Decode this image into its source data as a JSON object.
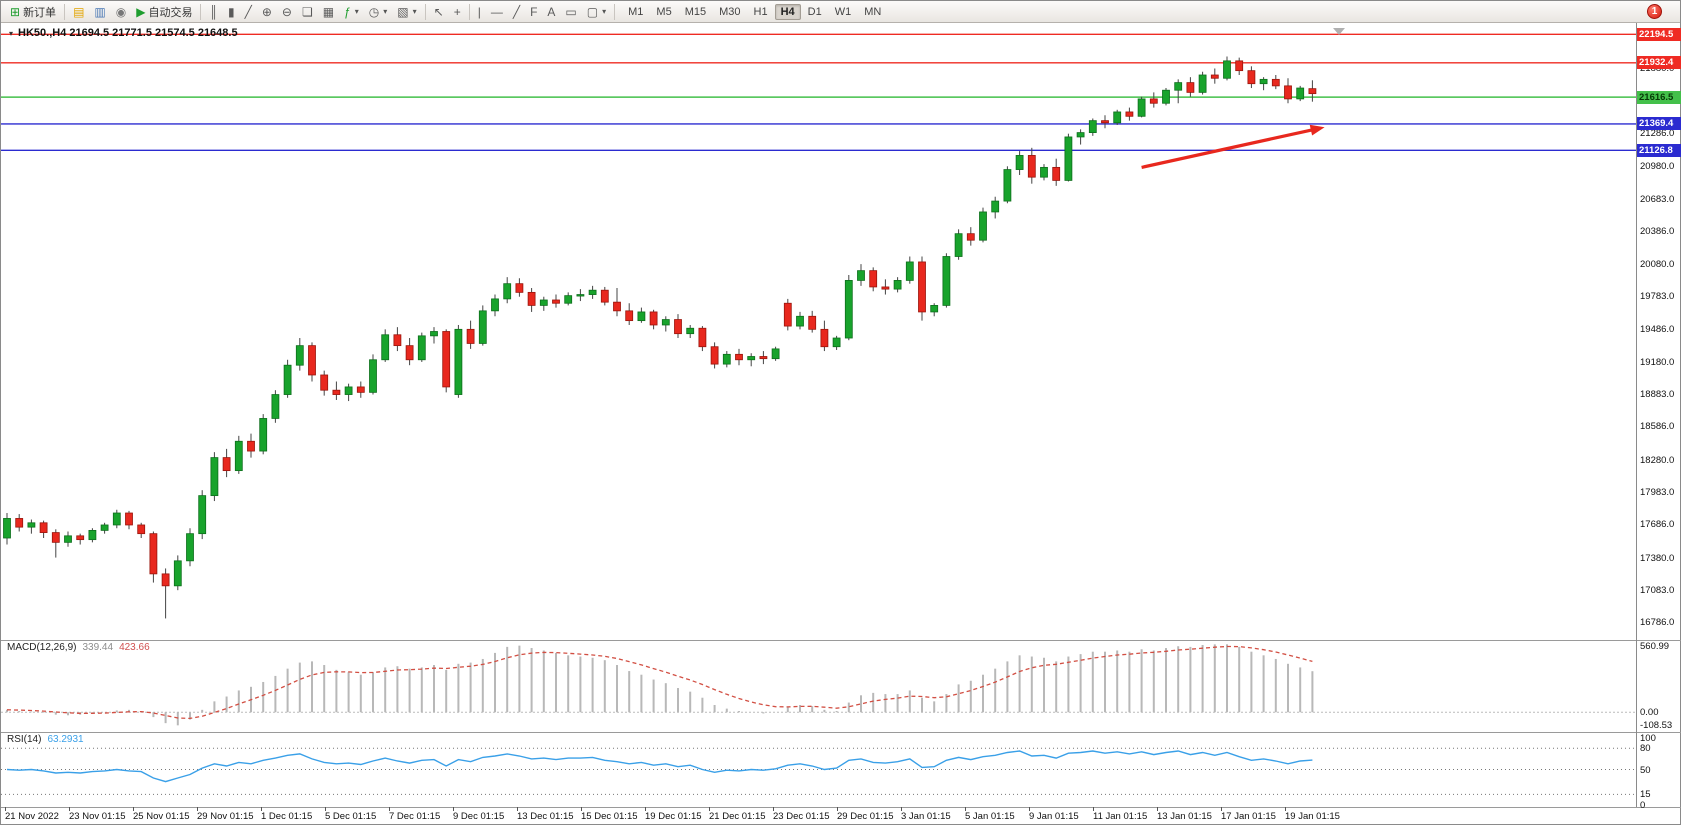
{
  "toolbar": {
    "new_order_label": "新订单",
    "auto_trading_label": "自动交易",
    "timeframes": [
      "M1",
      "M5",
      "M15",
      "M30",
      "H1",
      "H4",
      "D1",
      "W1",
      "MN"
    ],
    "active_timeframe": "H4",
    "notification_count": "1",
    "icons": {
      "menu_triangle": "▾",
      "new_order": "⊞",
      "profiles": "▤",
      "market_watch": "▥",
      "community": "◉",
      "auto_trading": "▶",
      "chart_bars": "║",
      "chart_candles": "▮",
      "chart_line": "╱",
      "zoom_in": "⊕",
      "zoom_out": "⊖",
      "tile_windows": "❏",
      "arrange_windows": "▦",
      "indicators": "ƒ",
      "periods": "◷",
      "templates": "▧",
      "cursor": "↖",
      "crosshair": "+",
      "vline": "|",
      "hline": "—",
      "trendline": "╱",
      "fibonacci": "F",
      "text": "A",
      "label": "▭",
      "shapes": "▢",
      "dropdown": "▾"
    }
  },
  "chart_data": {
    "type": "candlestick",
    "title": "HK50.,H4 21694.5 21771.5 21574.5 21648.5",
    "symbol": "HK50.",
    "timeframe": "H4",
    "last_ohlc": {
      "open": 21694.5,
      "high": 21771.5,
      "low": 21574.5,
      "close": 21648.5
    },
    "price_axis": {
      "min": 16640,
      "max": 22280,
      "ticks": [
        "21880.0",
        "21286.0",
        "20980.0",
        "20683.0",
        "20386.0",
        "20080.0",
        "19783.0",
        "19486.0",
        "19180.0",
        "18883.0",
        "18586.0",
        "18280.0",
        "17983.0",
        "17686.0",
        "17380.0",
        "17083.0",
        "16786.0"
      ]
    },
    "levels": [
      {
        "price": 22194.5,
        "label": "22194.5",
        "color": "#ef2b23",
        "text_color": "#ffffff"
      },
      {
        "price": 21932.4,
        "label": "21932.4",
        "color": "#ef2b23",
        "text_color": "#ffffff"
      },
      {
        "price": 21616.5,
        "label": "21616.5",
        "color": "#43c04a",
        "text_color": "#063906"
      },
      {
        "price": 21369.4,
        "label": "21369.4",
        "color": "#2b2bd0",
        "text_color": "#ffffff"
      },
      {
        "price": 21126.8,
        "label": "21126.8",
        "color": "#2b2bd0",
        "text_color": "#ffffff"
      }
    ],
    "candles": [
      [
        17560,
        17790,
        17500,
        17740
      ],
      [
        17740,
        17780,
        17620,
        17660
      ],
      [
        17660,
        17730,
        17600,
        17700
      ],
      [
        17700,
        17720,
        17560,
        17610
      ],
      [
        17610,
        17640,
        17380,
        17520
      ],
      [
        17520,
        17620,
        17480,
        17580
      ],
      [
        17580,
        17600,
        17500,
        17545
      ],
      [
        17545,
        17650,
        17520,
        17630
      ],
      [
        17630,
        17700,
        17600,
        17680
      ],
      [
        17680,
        17820,
        17650,
        17790
      ],
      [
        17790,
        17810,
        17640,
        17680
      ],
      [
        17680,
        17700,
        17560,
        17600
      ],
      [
        17600,
        17620,
        17150,
        17230
      ],
      [
        17230,
        17280,
        16820,
        17120
      ],
      [
        17120,
        17400,
        17080,
        17350
      ],
      [
        17350,
        17650,
        17300,
        17600
      ],
      [
        17600,
        18000,
        17550,
        17950
      ],
      [
        17950,
        18350,
        17900,
        18300
      ],
      [
        18300,
        18380,
        18120,
        18180
      ],
      [
        18180,
        18500,
        18150,
        18450
      ],
      [
        18450,
        18520,
        18300,
        18360
      ],
      [
        18360,
        18700,
        18330,
        18660
      ],
      [
        18660,
        18920,
        18620,
        18880
      ],
      [
        18880,
        19200,
        18850,
        19150
      ],
      [
        19150,
        19400,
        19100,
        19330
      ],
      [
        19330,
        19360,
        19000,
        19060
      ],
      [
        19060,
        19100,
        18870,
        18920
      ],
      [
        18920,
        19000,
        18830,
        18880
      ],
      [
        18880,
        18980,
        18820,
        18950
      ],
      [
        18950,
        19000,
        18850,
        18900
      ],
      [
        18900,
        19250,
        18880,
        19200
      ],
      [
        19200,
        19480,
        19180,
        19430
      ],
      [
        19430,
        19500,
        19280,
        19330
      ],
      [
        19330,
        19400,
        19150,
        19200
      ],
      [
        19200,
        19450,
        19180,
        19420
      ],
      [
        19420,
        19500,
        19350,
        19460
      ],
      [
        19460,
        19480,
        18900,
        18950
      ],
      [
        18880,
        19520,
        18850,
        19480
      ],
      [
        19480,
        19560,
        19300,
        19350
      ],
      [
        19350,
        19700,
        19330,
        19650
      ],
      [
        19650,
        19800,
        19600,
        19760
      ],
      [
        19760,
        19960,
        19720,
        19900
      ],
      [
        19900,
        19950,
        19780,
        19820
      ],
      [
        19820,
        19860,
        19640,
        19700
      ],
      [
        19700,
        19780,
        19650,
        19750
      ],
      [
        19750,
        19800,
        19680,
        19720
      ],
      [
        19720,
        19820,
        19700,
        19790
      ],
      [
        19790,
        19850,
        19740,
        19800
      ],
      [
        19800,
        19880,
        19760,
        19840
      ],
      [
        19840,
        19870,
        19700,
        19730
      ],
      [
        19730,
        19860,
        19600,
        19650
      ],
      [
        19650,
        19720,
        19520,
        19560
      ],
      [
        19560,
        19680,
        19540,
        19640
      ],
      [
        19640,
        19660,
        19480,
        19520
      ],
      [
        19520,
        19600,
        19460,
        19570
      ],
      [
        19570,
        19620,
        19400,
        19440
      ],
      [
        19440,
        19520,
        19400,
        19490
      ],
      [
        19490,
        19510,
        19280,
        19320
      ],
      [
        19320,
        19360,
        19120,
        19160
      ],
      [
        19160,
        19280,
        19130,
        19250
      ],
      [
        19250,
        19300,
        19150,
        19200
      ],
      [
        19200,
        19260,
        19140,
        19230
      ],
      [
        19230,
        19280,
        19160,
        19210
      ],
      [
        19210,
        19320,
        19190,
        19300
      ],
      [
        19720,
        19760,
        19470,
        19510
      ],
      [
        19510,
        19640,
        19480,
        19600
      ],
      [
        19600,
        19650,
        19450,
        19480
      ],
      [
        19480,
        19560,
        19280,
        19320
      ],
      [
        19320,
        19420,
        19290,
        19400
      ],
      [
        19400,
        19980,
        19380,
        19930
      ],
      [
        19930,
        20080,
        19880,
        20020
      ],
      [
        20020,
        20050,
        19830,
        19870
      ],
      [
        19870,
        19940,
        19800,
        19850
      ],
      [
        19850,
        19960,
        19820,
        19930
      ],
      [
        19930,
        20150,
        19900,
        20100
      ],
      [
        20100,
        20150,
        19560,
        19640
      ],
      [
        19640,
        19720,
        19600,
        19700
      ],
      [
        19700,
        20180,
        19680,
        20150
      ],
      [
        20150,
        20400,
        20120,
        20360
      ],
      [
        20360,
        20420,
        20250,
        20300
      ],
      [
        20300,
        20600,
        20280,
        20560
      ],
      [
        20560,
        20700,
        20500,
        20660
      ],
      [
        20660,
        20980,
        20640,
        20950
      ],
      [
        20950,
        21120,
        20900,
        21080
      ],
      [
        21080,
        21150,
        20820,
        20880
      ],
      [
        20880,
        21000,
        20850,
        20970
      ],
      [
        20970,
        21050,
        20800,
        20850
      ],
      [
        20850,
        21280,
        20840,
        21250
      ],
      [
        21250,
        21320,
        21180,
        21290
      ],
      [
        21290,
        21420,
        21260,
        21400
      ],
      [
        21400,
        21450,
        21330,
        21380
      ],
      [
        21380,
        21500,
        21360,
        21480
      ],
      [
        21480,
        21520,
        21400,
        21440
      ],
      [
        21440,
        21620,
        21430,
        21600
      ],
      [
        21600,
        21660,
        21520,
        21560
      ],
      [
        21560,
        21700,
        21540,
        21680
      ],
      [
        21680,
        21780,
        21560,
        21750
      ],
      [
        21750,
        21800,
        21620,
        21660
      ],
      [
        21660,
        21850,
        21640,
        21820
      ],
      [
        21820,
        21880,
        21740,
        21790
      ],
      [
        21790,
        21990,
        21770,
        21950
      ],
      [
        21950,
        21980,
        21820,
        21860
      ],
      [
        21860,
        21900,
        21700,
        21740
      ],
      [
        21740,
        21800,
        21680,
        21780
      ],
      [
        21780,
        21820,
        21690,
        21720
      ],
      [
        21720,
        21790,
        21560,
        21600
      ],
      [
        21600,
        21720,
        21580,
        21700
      ],
      [
        21694.5,
        21771.5,
        21574.5,
        21648.5
      ]
    ],
    "time_labels": [
      "21 Nov 2022",
      "23 Nov 01:15",
      "25 Nov 01:15",
      "29 Nov 01:15",
      "1 Dec 01:15",
      "5 Dec 01:15",
      "7 Dec 01:15",
      "9 Dec 01:15",
      "13 Dec 01:15",
      "15 Dec 01:15",
      "19 Dec 01:15",
      "21 Dec 01:15",
      "23 Dec 01:15",
      "29 Dec 01:15",
      "3 Jan 01:15",
      "5 Jan 01:15",
      "9 Jan 01:15",
      "11 Jan 01:15",
      "13 Jan 01:15",
      "17 Jan 01:15",
      "19 Jan 01:15"
    ],
    "indicators": {
      "macd": {
        "name": "MACD(12,26,9)",
        "value_main": "339.44",
        "value_signal": "423.66",
        "axis_ticks": [
          "560.99",
          "0.00",
          "-108.53"
        ],
        "range": [
          -130,
          580
        ],
        "values": [
          20,
          10,
          5,
          -5,
          -20,
          -25,
          -20,
          -10,
          0,
          15,
          20,
          10,
          -40,
          -90,
          -108,
          -60,
          20,
          90,
          130,
          180,
          210,
          250,
          300,
          360,
          410,
          420,
          390,
          350,
          330,
          310,
          330,
          370,
          380,
          360,
          370,
          390,
          350,
          400,
          410,
          440,
          490,
          540,
          550,
          530,
          510,
          490,
          470,
          460,
          450,
          430,
          390,
          340,
          310,
          270,
          240,
          200,
          170,
          120,
          60,
          30,
          10,
          0,
          -10,
          0,
          40,
          60,
          50,
          20,
          10,
          80,
          140,
          160,
          150,
          150,
          180,
          120,
          90,
          150,
          230,
          260,
          310,
          360,
          420,
          470,
          460,
          450,
          420,
          460,
          480,
          500,
          500,
          510,
          500,
          520,
          510,
          530,
          545,
          540,
          555,
          560,
          561,
          540,
          500,
          470,
          440,
          400,
          370,
          339
        ]
      },
      "rsi": {
        "name": "RSI(14)",
        "value": "63.2931",
        "axis_ticks": [
          "100",
          "80",
          "50",
          "15",
          "0"
        ],
        "levels": [
          80,
          50,
          15
        ],
        "range": [
          0,
          100
        ],
        "values": [
          50,
          49,
          50,
          48,
          45,
          46,
          45,
          47,
          48,
          50,
          48,
          47,
          38,
          33,
          38,
          43,
          52,
          58,
          55,
          60,
          58,
          63,
          66,
          70,
          72,
          65,
          60,
          58,
          59,
          57,
          62,
          66,
          62,
          59,
          63,
          64,
          55,
          64,
          61,
          67,
          69,
          72,
          69,
          65,
          66,
          64,
          66,
          66,
          67,
          63,
          61,
          58,
          60,
          56,
          58,
          54,
          56,
          50,
          46,
          49,
          48,
          50,
          49,
          51,
          56,
          58,
          55,
          50,
          52,
          63,
          65,
          60,
          59,
          61,
          65,
          53,
          54,
          63,
          67,
          64,
          68,
          70,
          74,
          76,
          69,
          70,
          66,
          73,
          74,
          76,
          73,
          75,
          72,
          75,
          71,
          74,
          76,
          71,
          74,
          70,
          74,
          68,
          63,
          65,
          62,
          58,
          62,
          63.29
        ]
      }
    },
    "annotations": [
      {
        "type": "trend-arrow",
        "from": {
          "bar": 93,
          "price": 20970
        },
        "to": {
          "bar": 108,
          "price": 21340
        },
        "color": "#e8281e"
      }
    ],
    "colors": {
      "up": "#18a32c",
      "down": "#e8281e",
      "macd_bar": "#b8b8b8",
      "macd_signal": "#d24f43",
      "rsi_line": "#3aa0e8"
    }
  }
}
